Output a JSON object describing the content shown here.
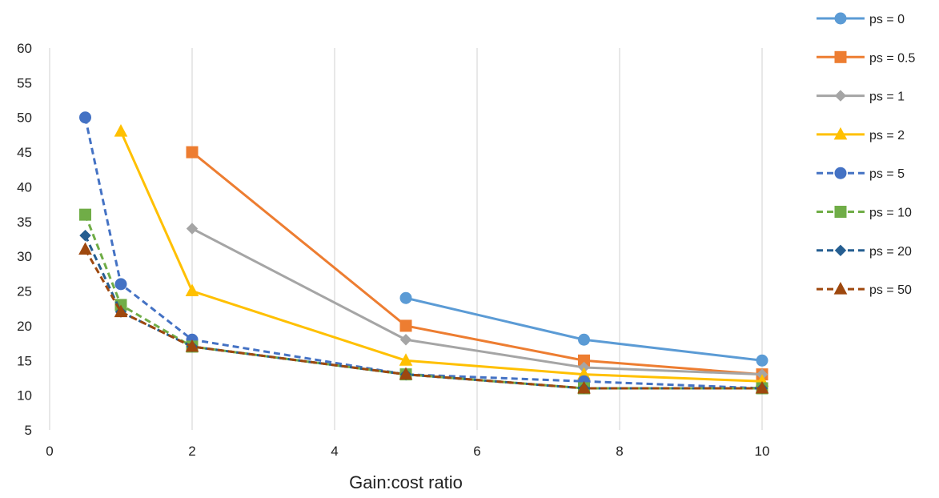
{
  "chart_data": {
    "type": "line",
    "title": "",
    "xlabel": "Gain:cost ratio",
    "ylabel": "",
    "xlim": [
      0,
      10
    ],
    "ylim": [
      5,
      60
    ],
    "x_ticks": [
      0,
      2,
      4,
      6,
      8,
      10
    ],
    "y_ticks": [
      5,
      10,
      15,
      20,
      25,
      30,
      35,
      40,
      45,
      50,
      55,
      60
    ],
    "grid": "vertical",
    "legend_position": "right",
    "series": [
      {
        "name": "ps = 0",
        "color": "#5B9BD5",
        "dashed": false,
        "marker": "circle",
        "points": [
          [
            5,
            24
          ],
          [
            7.5,
            18
          ],
          [
            10,
            15
          ]
        ]
      },
      {
        "name": "ps = 0.5",
        "color": "#ED7D31",
        "dashed": false,
        "marker": "square",
        "points": [
          [
            2,
            45
          ],
          [
            5,
            20
          ],
          [
            7.5,
            15
          ],
          [
            10,
            13
          ]
        ]
      },
      {
        "name": "ps = 1",
        "color": "#A5A5A5",
        "dashed": false,
        "marker": "diamond",
        "points": [
          [
            2,
            34
          ],
          [
            5,
            18
          ],
          [
            7.5,
            14
          ],
          [
            10,
            13
          ]
        ]
      },
      {
        "name": "ps = 2",
        "color": "#FFC000",
        "dashed": false,
        "marker": "triangle",
        "points": [
          [
            1,
            48
          ],
          [
            2,
            25
          ],
          [
            5,
            15
          ],
          [
            7.5,
            13
          ],
          [
            10,
            12
          ]
        ]
      },
      {
        "name": "ps = 5",
        "color": "#4472C4",
        "dashed": true,
        "marker": "circle",
        "points": [
          [
            0.5,
            50
          ],
          [
            1,
            26
          ],
          [
            2,
            18
          ],
          [
            5,
            13
          ],
          [
            7.5,
            12
          ],
          [
            10,
            11
          ]
        ]
      },
      {
        "name": "ps = 10",
        "color": "#70AD47",
        "dashed": true,
        "marker": "square",
        "points": [
          [
            0.5,
            36
          ],
          [
            1,
            23
          ],
          [
            2,
            17
          ],
          [
            5,
            13
          ],
          [
            7.5,
            11
          ],
          [
            10,
            11
          ]
        ]
      },
      {
        "name": "ps = 20",
        "color": "#255E91",
        "dashed": true,
        "marker": "diamond",
        "points": [
          [
            0.5,
            33
          ],
          [
            1,
            22
          ],
          [
            2,
            17
          ],
          [
            5,
            13
          ],
          [
            7.5,
            11
          ],
          [
            10,
            11
          ]
        ]
      },
      {
        "name": "ps = 50",
        "color": "#9E480E",
        "dashed": true,
        "marker": "triangle",
        "points": [
          [
            0.5,
            31
          ],
          [
            1,
            22
          ],
          [
            2,
            17
          ],
          [
            5,
            13
          ],
          [
            7.5,
            11
          ],
          [
            10,
            11
          ]
        ]
      }
    ]
  }
}
